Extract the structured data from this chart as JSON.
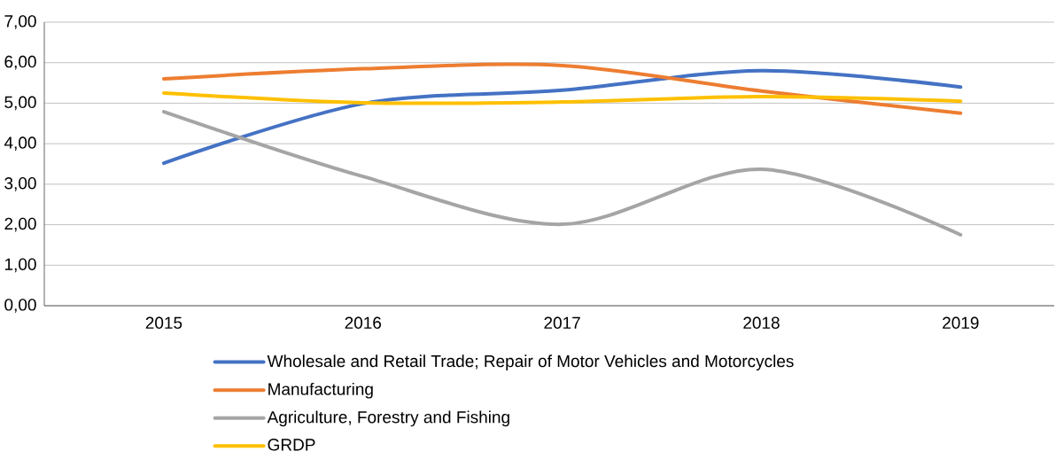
{
  "chart_data": {
    "type": "line",
    "categories": [
      "2015",
      "2016",
      "2017",
      "2018",
      "2019"
    ],
    "series": [
      {
        "name": "Wholesale and Retail Trade; Repair of Motor Vehicles and Motorcycles",
        "color": "#4472c4",
        "values": [
          3.52,
          4.99,
          5.32,
          5.8,
          5.4
        ]
      },
      {
        "name": "Manufacturing",
        "color": "#ed7d31",
        "values": [
          5.6,
          5.85,
          5.93,
          5.3,
          4.75
        ]
      },
      {
        "name": "Agriculture, Forestry and Fishing",
        "color": "#a5a5a5",
        "values": [
          4.79,
          3.19,
          2.01,
          3.37,
          1.75
        ]
      },
      {
        "name": "GRDP",
        "color": "#ffc000",
        "values": [
          5.25,
          5.01,
          5.03,
          5.16,
          5.05
        ]
      }
    ],
    "ylim": [
      0,
      7
    ],
    "yticks": [
      {
        "value": 0,
        "label": "0,00"
      },
      {
        "value": 1,
        "label": "1,00"
      },
      {
        "value": 2,
        "label": "2,00"
      },
      {
        "value": 3,
        "label": "3,00"
      },
      {
        "value": 4,
        "label": "4,00"
      },
      {
        "value": 5,
        "label": "5,00"
      },
      {
        "value": 6,
        "label": "6,00"
      },
      {
        "value": 7,
        "label": "7,00"
      }
    ],
    "grid": "y",
    "legend": "bottom",
    "marker": "none",
    "line_style": "solid"
  }
}
